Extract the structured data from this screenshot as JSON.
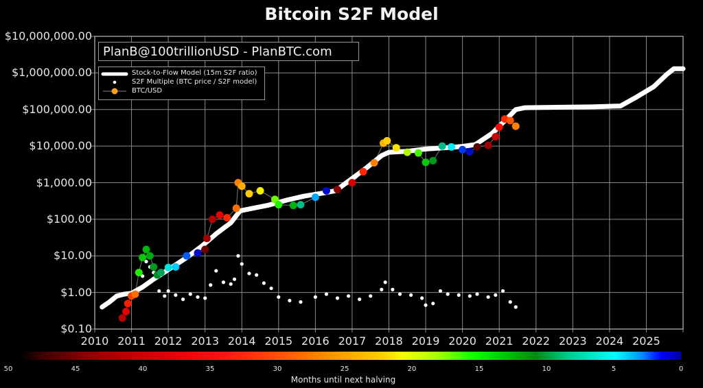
{
  "title": "Bitcoin S2F Model",
  "credit": "PlanB@100trillionUSD - PlanBTC.com",
  "legend": [
    {
      "label": "Stock-to-Flow Model (15m S2F ratio)",
      "marker": "thick-white-line"
    },
    {
      "label": "S2F Multiple (BTC price / S2F model)",
      "marker": "white-dot"
    },
    {
      "label": "BTC/USD",
      "marker": "orange-dot-line"
    }
  ],
  "y_ticks": [
    "$10,000,000.00",
    "$1,000,000.00",
    "$100,000.00",
    "$10,000.00",
    "$1,000.00",
    "$100.00",
    "$10.00",
    "$1.00",
    "$0.10"
  ],
  "x_ticks": [
    "2010",
    "2011",
    "2012",
    "2013",
    "2014",
    "2015",
    "2016",
    "2017",
    "2018",
    "2019",
    "2020",
    "2021",
    "2022",
    "2023",
    "2024",
    "2025"
  ],
  "colorbar": {
    "label": "Months until next halving",
    "ticks": [
      "50",
      "45",
      "40",
      "35",
      "30",
      "25",
      "20",
      "15",
      "10",
      "5",
      "0"
    ]
  },
  "colors": {
    "background": "#000000",
    "grid": "#8c8c8c",
    "model": "#ffffff",
    "multiple": "#ffffff"
  },
  "chart_data": {
    "type": "scatter",
    "title": "Bitcoin S2F Model",
    "xlabel": "",
    "ylabel": "",
    "yscale": "log",
    "ylim": [
      0.1,
      10000000
    ],
    "xlim": [
      2010,
      2026
    ],
    "grid": true,
    "legend_position": "upper left",
    "colorbar": {
      "label": "Months until next halving",
      "range": [
        50,
        0
      ],
      "colormap": "jet-like"
    },
    "series": [
      {
        "name": "Stock-to-Flow Model (15m S2F ratio)",
        "type": "line",
        "x": [
          2010.2,
          2010.4,
          2010.6,
          2010.8,
          2011.0,
          2011.3,
          2011.6,
          2012.0,
          2012.5,
          2012.9,
          2013.3,
          2013.7,
          2013.95,
          2014.3,
          2014.7,
          2015.2,
          2015.7,
          2016.2,
          2016.55,
          2017.0,
          2017.4,
          2017.8,
          2018.0,
          2018.5,
          2019.0,
          2019.5,
          2020.0,
          2020.35,
          2020.8,
          2021.2,
          2021.45,
          2021.7,
          2022.5,
          2023.5,
          2024.3,
          2024.7,
          2025.2,
          2025.55,
          2025.75,
          2026.0
        ],
        "y": [
          0.4,
          0.55,
          0.8,
          0.9,
          0.95,
          1.4,
          2.3,
          4.2,
          9,
          18,
          40,
          80,
          170,
          200,
          240,
          330,
          430,
          520,
          600,
          1300,
          2600,
          5500,
          6800,
          7200,
          8300,
          9000,
          9800,
          11000,
          22000,
          55000,
          100000,
          112000,
          115000,
          118000,
          125000,
          210000,
          420000,
          900000,
          1300000,
          1300000
        ]
      },
      {
        "name": "BTC/USD",
        "type": "scatter",
        "colored_by": "months_until_next_halving",
        "x": [
          2010.75,
          2010.85,
          2010.9,
          2011.0,
          2011.1,
          2011.2,
          2011.3,
          2011.4,
          2011.5,
          2011.6,
          2011.7,
          2011.8,
          2012.0,
          2012.2,
          2012.5,
          2012.8,
          2013.0,
          2013.05,
          2013.2,
          2013.4,
          2013.6,
          2013.85,
          2013.9,
          2014.0,
          2014.2,
          2014.5,
          2014.9,
          2015.0,
          2015.4,
          2015.6,
          2016.0,
          2016.3,
          2016.6,
          2017.0,
          2017.3,
          2017.6,
          2017.85,
          2017.95,
          2018.2,
          2018.5,
          2018.8,
          2019.0,
          2019.2,
          2019.45,
          2019.7,
          2020.0,
          2020.2,
          2020.4,
          2020.7,
          2020.9,
          2021.0,
          2021.15,
          2021.3,
          2021.45
        ],
        "y": [
          0.2,
          0.3,
          0.5,
          0.8,
          0.9,
          3.5,
          9,
          15,
          10,
          5,
          3,
          3.5,
          4.8,
          5,
          10,
          12,
          15,
          30,
          100,
          130,
          110,
          200,
          1000,
          800,
          500,
          600,
          350,
          250,
          240,
          250,
          400,
          600,
          650,
          1000,
          2000,
          3500,
          12000,
          14000,
          9000,
          6800,
          6500,
          3600,
          4000,
          10000,
          9500,
          8000,
          7000,
          9500,
          10500,
          18000,
          33000,
          55000,
          50000,
          35000
        ],
        "months_until_halving": [
          43,
          41,
          39,
          37,
          35,
          20,
          18,
          17,
          16,
          15,
          14,
          13,
          10,
          8,
          5,
          2,
          46,
          44,
          43,
          41,
          38,
          35,
          34,
          31,
          29,
          26,
          22,
          20,
          17,
          12,
          7,
          2,
          45,
          42,
          38,
          34,
          31,
          29,
          27,
          24,
          21,
          18,
          15,
          12,
          9,
          4,
          2,
          47,
          44,
          42,
          40,
          38,
          36,
          34
        ]
      },
      {
        "name": "S2F Multiple (BTC price / S2F model)",
        "type": "scatter",
        "x": [
          2011.3,
          2011.4,
          2011.5,
          2011.6,
          2011.75,
          2011.9,
          2012.0,
          2012.2,
          2012.4,
          2012.6,
          2012.8,
          2013.0,
          2013.15,
          2013.3,
          2013.5,
          2013.7,
          2013.8,
          2013.9,
          2014.0,
          2014.2,
          2014.4,
          2014.6,
          2014.8,
          2015.0,
          2015.3,
          2015.6,
          2016.0,
          2016.3,
          2016.6,
          2016.9,
          2017.2,
          2017.5,
          2017.8,
          2017.9,
          2018.1,
          2018.3,
          2018.6,
          2018.9,
          2019.0,
          2019.2,
          2019.4,
          2019.6,
          2019.9,
          2020.2,
          2020.4,
          2020.7,
          2020.9,
          2021.1,
          2021.3,
          2021.45
        ],
        "y": [
          2.8,
          7,
          5,
          3.5,
          1.1,
          0.8,
          1.1,
          0.85,
          0.65,
          0.9,
          0.75,
          0.7,
          1.6,
          3.9,
          1.9,
          1.7,
          2.3,
          10,
          6,
          3.3,
          3,
          1.8,
          1.3,
          0.75,
          0.6,
          0.55,
          0.75,
          0.9,
          0.7,
          0.8,
          0.65,
          0.8,
          1.2,
          1.9,
          1.2,
          0.9,
          0.85,
          0.7,
          0.45,
          0.5,
          1.1,
          0.9,
          0.85,
          0.8,
          0.9,
          0.75,
          0.85,
          1.1,
          0.55,
          0.4
        ]
      }
    ]
  }
}
